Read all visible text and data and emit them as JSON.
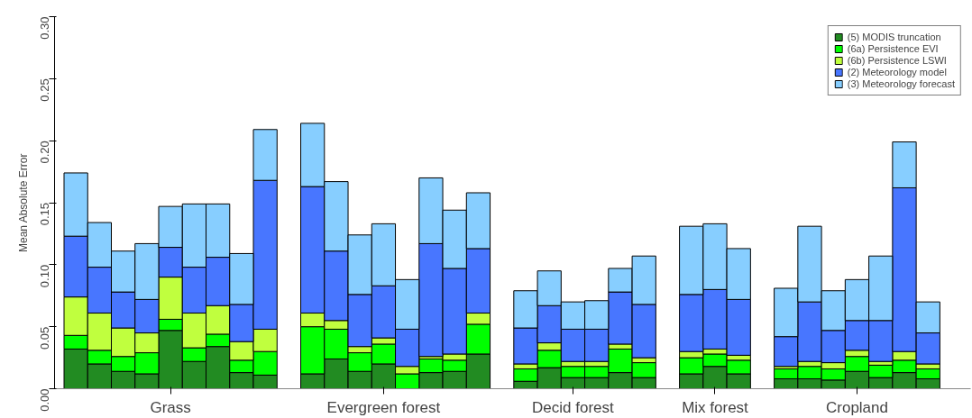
{
  "chart_data": {
    "type": "bar",
    "stacked": true,
    "ylabel": "Mean Absolute Error",
    "categories": [
      null,
      null,
      null,
      null,
      "Grass",
      null,
      null,
      null,
      null,
      null,
      null,
      null,
      null,
      "Evergreen forest",
      null,
      null,
      null,
      null,
      null,
      null,
      null,
      "Decid forest",
      null,
      null,
      null,
      null,
      null,
      "Mix forest",
      null,
      null,
      null,
      null,
      null,
      "Cropland",
      null,
      null,
      null
    ],
    "series": [
      {
        "name": "(5) MODIS truncation",
        "color": "#228b22",
        "values": [
          0.032,
          0.02,
          0.014,
          0.012,
          0.047,
          0.022,
          0.034,
          0.013,
          0.011,
          null,
          0.012,
          0.024,
          0.014,
          0.02,
          0.0,
          0.013,
          0.014,
          0.028,
          null,
          0.006,
          0.017,
          0.009,
          0.009,
          0.013,
          0.009,
          null,
          0.012,
          0.018,
          0.012,
          null,
          0.008,
          0.008,
          0.007,
          0.014,
          0.009,
          0.013,
          0.008
        ]
      },
      {
        "name": "(6a) Persistence EVI",
        "color": "#00ff00",
        "values": [
          0.011,
          0.011,
          0.012,
          0.017,
          0.009,
          0.011,
          0.01,
          0.01,
          0.019,
          null,
          0.038,
          0.024,
          0.015,
          0.016,
          0.012,
          0.011,
          0.009,
          0.024,
          null,
          0.01,
          0.014,
          0.009,
          0.009,
          0.019,
          0.012,
          null,
          0.013,
          0.01,
          0.011,
          null,
          0.008,
          0.01,
          0.009,
          0.012,
          0.01,
          0.01,
          0.008
        ]
      },
      {
        "name": "(6b) Persistence LSWI",
        "color": "#c0ff3e",
        "values": [
          0.031,
          0.03,
          0.023,
          0.016,
          0.034,
          0.028,
          0.023,
          0.015,
          0.018,
          null,
          0.011,
          0.007,
          0.005,
          0.005,
          0.006,
          0.002,
          0.005,
          0.009,
          null,
          0.004,
          0.006,
          0.004,
          0.004,
          0.004,
          0.004,
          null,
          0.005,
          0.004,
          0.004,
          null,
          0.002,
          0.004,
          0.005,
          0.005,
          0.003,
          0.007,
          0.004
        ]
      },
      {
        "name": "(2) Meteorology model",
        "color": "#4876ff",
        "values": [
          0.049,
          0.037,
          0.029,
          0.027,
          0.024,
          0.037,
          0.039,
          0.03,
          0.12,
          null,
          0.102,
          0.056,
          0.042,
          0.042,
          0.03,
          0.091,
          0.069,
          0.052,
          null,
          0.029,
          0.03,
          0.026,
          0.026,
          0.042,
          0.043,
          null,
          0.046,
          0.048,
          0.045,
          null,
          0.024,
          0.048,
          0.026,
          0.024,
          0.033,
          0.132,
          0.025
        ]
      },
      {
        "name": "(3) Meteorology forecast",
        "color": "#87ceff",
        "values": [
          0.051,
          0.036,
          0.033,
          0.045,
          0.033,
          0.051,
          0.043,
          0.041,
          0.041,
          null,
          0.051,
          0.056,
          0.048,
          0.05,
          0.04,
          0.053,
          0.047,
          0.045,
          null,
          0.03,
          0.028,
          0.022,
          0.023,
          0.019,
          0.039,
          null,
          0.055,
          0.053,
          0.041,
          null,
          0.039,
          0.061,
          0.032,
          0.033,
          0.052,
          0.037,
          0.025
        ]
      }
    ],
    "ylim": [
      0,
      0.3
    ],
    "yticks": [
      {
        "value": 0,
        "label": "0.00"
      },
      {
        "value": 0.05,
        "label": "0.05"
      },
      {
        "value": 0.1,
        "label": "0.10"
      },
      {
        "value": 0.15,
        "label": "0.15"
      },
      {
        "value": 0.2,
        "label": "0.20"
      },
      {
        "value": 0.25,
        "label": "0.25"
      },
      {
        "value": 0.3,
        "label": "0.30"
      }
    ],
    "legend": "top right"
  }
}
